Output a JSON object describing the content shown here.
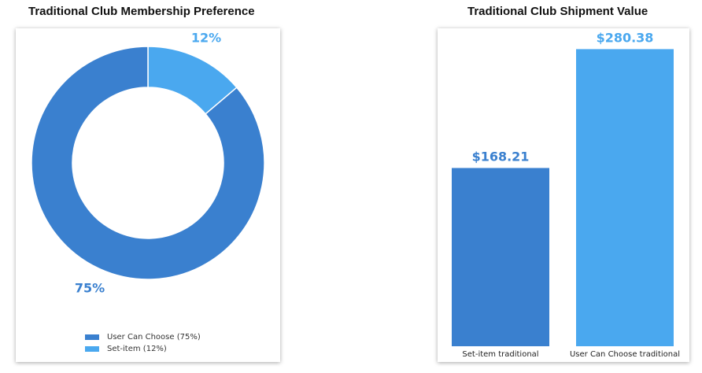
{
  "charts": {
    "left_title": "Traditional Club Membership Preference",
    "right_title": "Traditional Club Shipment Value"
  },
  "colors": {
    "dark_blue": "#3a80cf",
    "light_blue": "#4aa8ef"
  },
  "chart_data": [
    {
      "type": "pie",
      "title": "Traditional Club Membership Preference",
      "slices": [
        {
          "label": "User Can Choose (75%)",
          "value": 75,
          "data_label": "75%",
          "color": "#3a80cf"
        },
        {
          "label": "Set-item (12%)",
          "value": 12,
          "data_label": "12%",
          "color": "#4aa8ef"
        }
      ],
      "legend": "bottom"
    },
    {
      "type": "bar",
      "title": "Traditional Club Shipment Value",
      "categories": [
        "Set-item traditional",
        "User Can Choose traditional"
      ],
      "values": [
        168.21,
        280.38
      ],
      "data_labels": [
        "$168.21",
        "$280.38"
      ],
      "colors": [
        "#3a80cf",
        "#4aa8ef"
      ],
      "ylim": [
        0,
        300
      ]
    }
  ]
}
